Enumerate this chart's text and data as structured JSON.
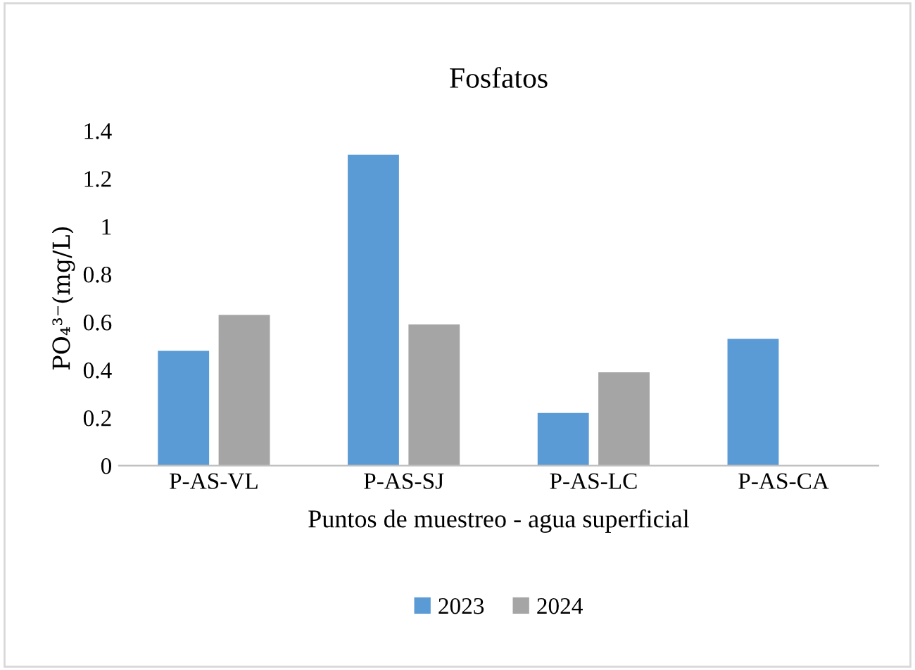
{
  "chart_data": {
    "type": "bar",
    "title": "Fosfatos",
    "xlabel": "Puntos de muestreo - agua superficial",
    "ylabel": "PO₄³⁻(mg/L)",
    "categories": [
      "P-AS-VL",
      "P-AS-SJ",
      "P-AS-LC",
      "P-AS-CA"
    ],
    "series": [
      {
        "name": "2023",
        "color": "#5b9bd5",
        "values": [
          0.48,
          1.3,
          0.22,
          0.53
        ]
      },
      {
        "name": "2024",
        "color": "#a5a5a5",
        "values": [
          0.63,
          0.59,
          0.39,
          null
        ]
      }
    ],
    "ylim": [
      0,
      1.4
    ],
    "yticks": [
      0,
      0.2,
      0.4,
      0.6,
      0.8,
      1,
      1.2,
      1.4
    ],
    "grid": false,
    "legend": "bottom"
  }
}
